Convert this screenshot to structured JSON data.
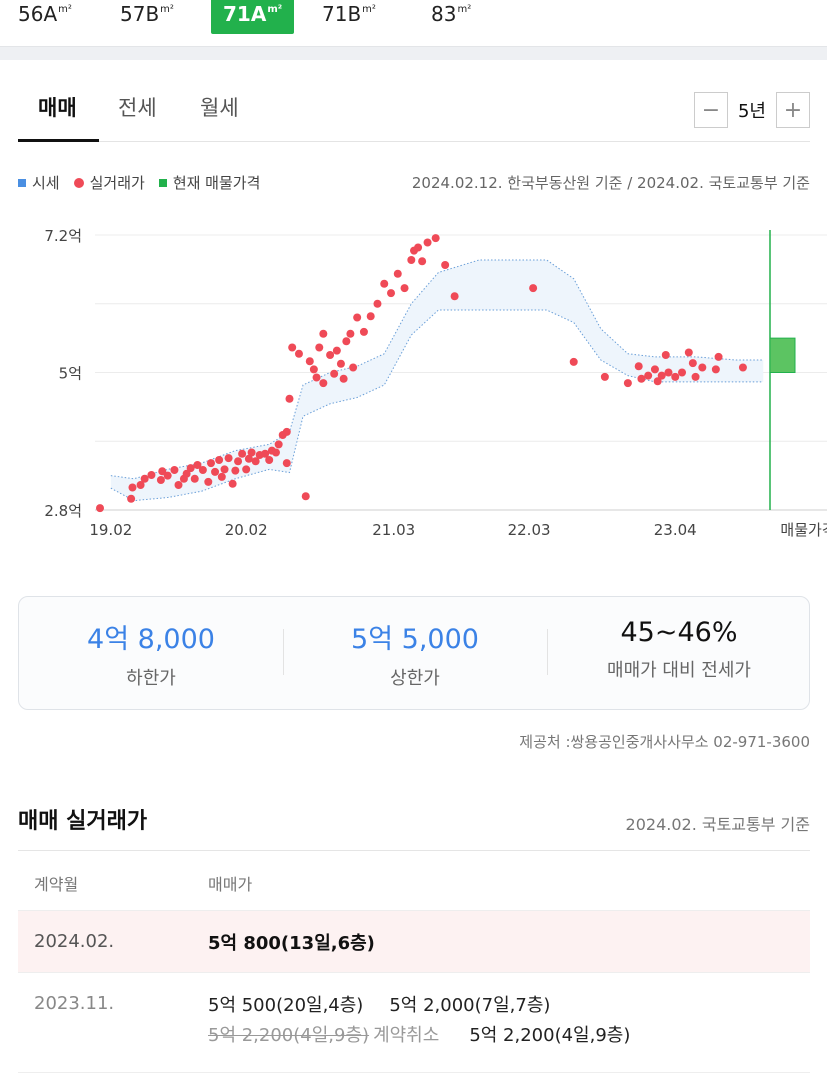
{
  "size_tabs": [
    {
      "label": "56A",
      "unit": "m²",
      "active": false
    },
    {
      "label": "57B",
      "unit": "m²",
      "active": false
    },
    {
      "label": "71A",
      "unit": "m²",
      "active": true
    },
    {
      "label": "71B",
      "unit": "m²",
      "active": false
    },
    {
      "label": "83",
      "unit": "m²",
      "active": false
    }
  ],
  "trade_tabs": [
    "매매",
    "전세",
    "월세"
  ],
  "period": {
    "minus": "−",
    "value": "5년",
    "plus": "+"
  },
  "legend": {
    "market": "시세",
    "actual": "실거래가",
    "listing": "현재 매물가격"
  },
  "colors": {
    "market": "#4a8fe2",
    "actual": "#ef4a57",
    "listing": "#22b14c",
    "band": "#eef5fc",
    "band_line": "#6a9fd8"
  },
  "basis_text": "2024.02.12. 한국부동산원 기준 / 2024.02. 국토교통부 기준",
  "chart_data": {
    "type": "scatter",
    "y_ticks": [
      "7.2억",
      "5억",
      "2.8억"
    ],
    "y_tick_values": [
      7.2,
      5.0,
      2.8
    ],
    "ylim": [
      2.8,
      7.2
    ],
    "x_ticks": [
      "19.02",
      "20.02",
      "21.03",
      "22.03",
      "23.04"
    ],
    "x_tick_values": [
      2019.08,
      2020.08,
      2021.17,
      2022.17,
      2023.25
    ],
    "xlim": [
      2019.0,
      2024.2
    ],
    "listing_label": "매물가격",
    "listing_range": [
      5.0,
      5.55
    ],
    "band": {
      "x": [
        2019.08,
        2019.25,
        2019.5,
        2019.75,
        2020.0,
        2020.25,
        2020.4,
        2020.5,
        2020.7,
        2020.9,
        2021.1,
        2021.3,
        2021.5,
        2021.8,
        2022.0,
        2022.3,
        2022.5,
        2022.7,
        2022.9,
        2023.1,
        2023.4,
        2023.7,
        2023.9
      ],
      "upper": [
        3.35,
        3.3,
        3.45,
        3.55,
        3.75,
        3.85,
        4.05,
        4.8,
        5.0,
        5.1,
        5.3,
        6.1,
        6.6,
        6.8,
        6.8,
        6.8,
        6.5,
        5.7,
        5.3,
        5.25,
        5.25,
        5.2,
        5.2
      ],
      "lower": [
        3.15,
        2.95,
        3.0,
        3.1,
        3.3,
        3.45,
        3.4,
        4.3,
        4.5,
        4.6,
        4.8,
        5.6,
        6.0,
        6.0,
        6.0,
        6.0,
        5.8,
        5.2,
        4.95,
        4.85,
        4.85,
        4.85,
        4.85
      ]
    },
    "points": [
      [
        2019.0,
        2.83
      ],
      [
        2019.23,
        2.98
      ],
      [
        2019.24,
        3.16
      ],
      [
        2019.3,
        3.2
      ],
      [
        2019.33,
        3.3
      ],
      [
        2019.38,
        3.36
      ],
      [
        2019.45,
        3.28
      ],
      [
        2019.46,
        3.42
      ],
      [
        2019.5,
        3.35
      ],
      [
        2019.55,
        3.44
      ],
      [
        2019.58,
        3.2
      ],
      [
        2019.62,
        3.3
      ],
      [
        2019.64,
        3.38
      ],
      [
        2019.67,
        3.47
      ],
      [
        2019.7,
        3.3
      ],
      [
        2019.72,
        3.52
      ],
      [
        2019.76,
        3.44
      ],
      [
        2019.8,
        3.25
      ],
      [
        2019.82,
        3.55
      ],
      [
        2019.85,
        3.41
      ],
      [
        2019.88,
        3.6
      ],
      [
        2019.9,
        3.33
      ],
      [
        2019.92,
        3.45
      ],
      [
        2019.95,
        3.63
      ],
      [
        2019.98,
        3.22
      ],
      [
        2020.0,
        3.43
      ],
      [
        2020.02,
        3.58
      ],
      [
        2020.05,
        3.7
      ],
      [
        2020.08,
        3.45
      ],
      [
        2020.1,
        3.62
      ],
      [
        2020.12,
        3.72
      ],
      [
        2020.15,
        3.58
      ],
      [
        2020.18,
        3.68
      ],
      [
        2020.22,
        3.7
      ],
      [
        2020.25,
        3.6
      ],
      [
        2020.27,
        3.75
      ],
      [
        2020.3,
        3.72
      ],
      [
        2020.32,
        3.85
      ],
      [
        2020.35,
        4.0
      ],
      [
        2020.38,
        3.55
      ],
      [
        2020.38,
        4.05
      ],
      [
        2020.4,
        4.58
      ],
      [
        2020.42,
        5.4
      ],
      [
        2020.47,
        5.3
      ],
      [
        2020.52,
        3.02
      ],
      [
        2020.55,
        5.18
      ],
      [
        2020.58,
        5.05
      ],
      [
        2020.6,
        4.92
      ],
      [
        2020.62,
        5.4
      ],
      [
        2020.65,
        4.83
      ],
      [
        2020.65,
        5.62
      ],
      [
        2020.7,
        5.28
      ],
      [
        2020.73,
        4.98
      ],
      [
        2020.75,
        5.35
      ],
      [
        2020.78,
        5.14
      ],
      [
        2020.8,
        4.9
      ],
      [
        2020.82,
        5.5
      ],
      [
        2020.85,
        5.62
      ],
      [
        2020.87,
        5.08
      ],
      [
        2020.9,
        5.88
      ],
      [
        2020.95,
        5.65
      ],
      [
        2021.0,
        5.9
      ],
      [
        2021.05,
        6.1
      ],
      [
        2021.1,
        6.42
      ],
      [
        2021.15,
        6.27
      ],
      [
        2021.2,
        6.58
      ],
      [
        2021.25,
        6.35
      ],
      [
        2021.3,
        6.8
      ],
      [
        2021.32,
        6.95
      ],
      [
        2021.35,
        7.0
      ],
      [
        2021.38,
        6.78
      ],
      [
        2021.42,
        7.08
      ],
      [
        2021.48,
        7.15
      ],
      [
        2021.55,
        6.72
      ],
      [
        2021.62,
        6.22
      ],
      [
        2022.2,
        6.35
      ],
      [
        2022.5,
        5.17
      ],
      [
        2022.73,
        4.93
      ],
      [
        2022.9,
        4.83
      ],
      [
        2022.98,
        5.1
      ],
      [
        2023.0,
        4.9
      ],
      [
        2023.05,
        4.95
      ],
      [
        2023.1,
        5.05
      ],
      [
        2023.12,
        4.86
      ],
      [
        2023.15,
        4.95
      ],
      [
        2023.18,
        5.28
      ],
      [
        2023.2,
        5.0
      ],
      [
        2023.25,
        4.93
      ],
      [
        2023.3,
        5.0
      ],
      [
        2023.35,
        5.32
      ],
      [
        2023.38,
        5.15
      ],
      [
        2023.4,
        4.93
      ],
      [
        2023.45,
        5.08
      ],
      [
        2023.55,
        5.05
      ],
      [
        2023.57,
        5.25
      ],
      [
        2023.75,
        5.08
      ]
    ]
  },
  "summary": [
    {
      "value": "4억 8,000",
      "label": "하한가"
    },
    {
      "value": "5억 5,000",
      "label": "상한가"
    },
    {
      "value": "45~46%",
      "label": "매매가 대비 전세가"
    }
  ],
  "provider": "제공처 :쌍용공인중개사사무소 02-971-3600",
  "deals": {
    "title": "매매 실거래가",
    "basis": "2024.02. 국토교통부 기준",
    "head": {
      "month": "계약월",
      "price": "매매가"
    },
    "rows": [
      {
        "month": "2024.02.",
        "prices": [
          "5억 800(13일,6층)"
        ]
      },
      {
        "month": "2023.11.",
        "prices": [
          "5억 500(20일,4층)",
          "5억 2,000(7일,7층)"
        ],
        "cancelled": "5억 2,200(4일,9층)",
        "cancel_tag": "계약취소",
        "after_cancel": "5억 2,200(4일,9층)"
      }
    ]
  }
}
